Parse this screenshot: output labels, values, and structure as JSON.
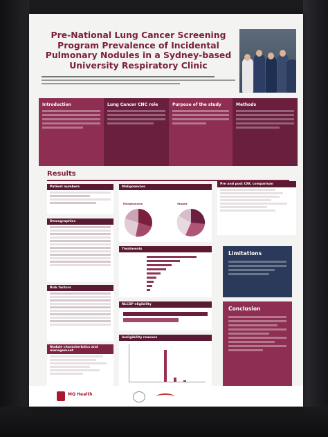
{
  "poster": {
    "title": "Pre-National Lung Cancer Screening Program Prevalence of Incidental Pulmonary Nodules in a Sydney-based University Respiratory Clinic",
    "sections": {
      "introduction": "Introduction",
      "cnc_role": "Lung Cancer CNC role",
      "purpose": "Purpose of the study",
      "methods": "Methods"
    },
    "results_heading": "Results",
    "cards": {
      "patient_numbers": "Patient numbers",
      "demographics": "Demographics",
      "risk_factors": "Risk factors",
      "nodule_characteristics": "Nodule characteristics and management",
      "malignancies": "Malignancies",
      "malignancies_pie_label": "Malignancies",
      "stages_pie_label": "Stages",
      "treatments": "Treatments",
      "nlcsp_eligibility": "NLCSP eligibility",
      "ineligibility_reasons": "Ineligibility reasons",
      "pre_post_cnc": "Pre and post CNC comparison"
    },
    "limitations": "Limitations",
    "conclusion": "Conclusion",
    "footer": {
      "logo_text": "MQ Health"
    }
  }
}
